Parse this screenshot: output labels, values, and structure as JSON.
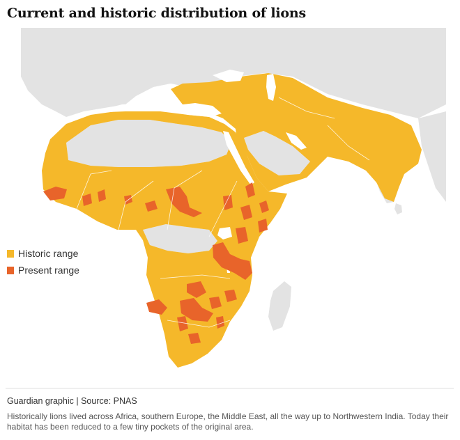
{
  "title": "Current and historic distribution of lions",
  "legend": {
    "historic": {
      "label": "Historic range",
      "color": "#f5b82a"
    },
    "present": {
      "label": "Present range",
      "color": "#e8642a"
    }
  },
  "colors": {
    "land": "#e3e3e3",
    "water": "#ffffff",
    "border": "#ffffff"
  },
  "source": "Guardian graphic | Source: PNAS",
  "caption": "Historically lions lived across Africa, southern Europe, the Middle East, all the way up to Northwestern India. Today their habitat has been reduced to a few tiny pockets of the original area."
}
